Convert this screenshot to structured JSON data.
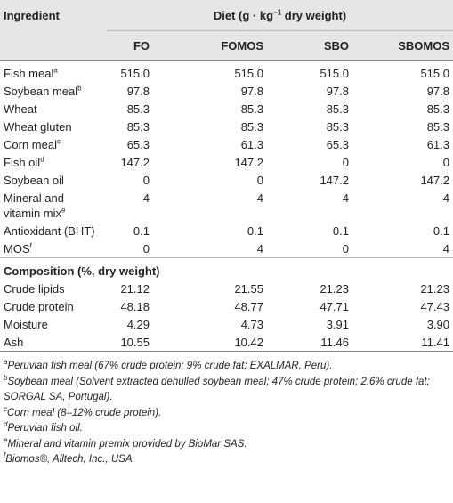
{
  "header": {
    "ingredient": "Ingredient",
    "diet": {
      "before": "Diet (g · kg",
      "sup": "−1",
      "after": " dry weight)"
    },
    "columns": [
      "FO",
      "FOMOS",
      "SBO",
      "SBOMOS"
    ]
  },
  "rows": [
    {
      "name": "Fish meal",
      "sup": "a",
      "values": [
        "515.0",
        "515.0",
        "515.0",
        "515.0"
      ]
    },
    {
      "name": "Soybean meal",
      "sup": "b",
      "values": [
        "97.8",
        "97.8",
        "97.8",
        "97.8"
      ]
    },
    {
      "name": "Wheat",
      "values": [
        "85.3",
        "85.3",
        "85.3",
        "85.3"
      ]
    },
    {
      "name": "Wheat gluten",
      "values": [
        "85.3",
        "85.3",
        "85.3",
        "85.3"
      ]
    },
    {
      "name": "Corn meal",
      "sup": "c",
      "values": [
        "65.3",
        "61.3",
        "65.3",
        "61.3"
      ]
    },
    {
      "name": "Fish oil",
      "sup": "d",
      "values": [
        "147.2",
        "147.2",
        "0",
        "0"
      ]
    },
    {
      "name": "Soybean oil",
      "values": [
        "0",
        "0",
        "147.2",
        "147.2"
      ]
    },
    {
      "name": "Mineral and vitamin mix",
      "sup": "e",
      "values": [
        "4",
        "4",
        "4",
        "4"
      ]
    },
    {
      "name": "Antioxidant (BHT)",
      "values": [
        "0.1",
        "0.1",
        "0.1",
        "0.1"
      ]
    },
    {
      "name": "MOS",
      "sup": "f",
      "values": [
        "0",
        "4",
        "0",
        "4"
      ]
    }
  ],
  "composition": {
    "title": "Composition (%, dry weight)",
    "rows": [
      {
        "name": "Crude lipids",
        "values": [
          "21.12",
          "21.55",
          "21.23",
          "21.23"
        ]
      },
      {
        "name": "Crude protein",
        "values": [
          "48.18",
          "48.77",
          "47.71",
          "47.43"
        ]
      },
      {
        "name": "Moisture",
        "values": [
          "4.29",
          "4.73",
          "3.91",
          "3.90"
        ]
      },
      {
        "name": "Ash",
        "values": [
          "10.55",
          "10.42",
          "11.46",
          "11.41"
        ]
      }
    ]
  },
  "footnotes": [
    {
      "sup": "a",
      "text": "Peruvian fish meal (67% crude protein; 9% crude fat; EXALMAR, Peru)."
    },
    {
      "sup": "b",
      "text": "Soybean meal (Solvent extracted dehulled soybean meal; 47% crude protein; 2.6% crude fat; SORGAL SA, Portugal)."
    },
    {
      "sup": "c",
      "text": "Corn meal (8–12% crude protein)."
    },
    {
      "sup": "d",
      "text": "Peruvian fish oil."
    },
    {
      "sup": "e",
      "text": "Mineral and vitamin premix provided by BioMar SAS."
    },
    {
      "sup": "f",
      "text": "Biomos®, Alltech, Inc., USA."
    }
  ]
}
